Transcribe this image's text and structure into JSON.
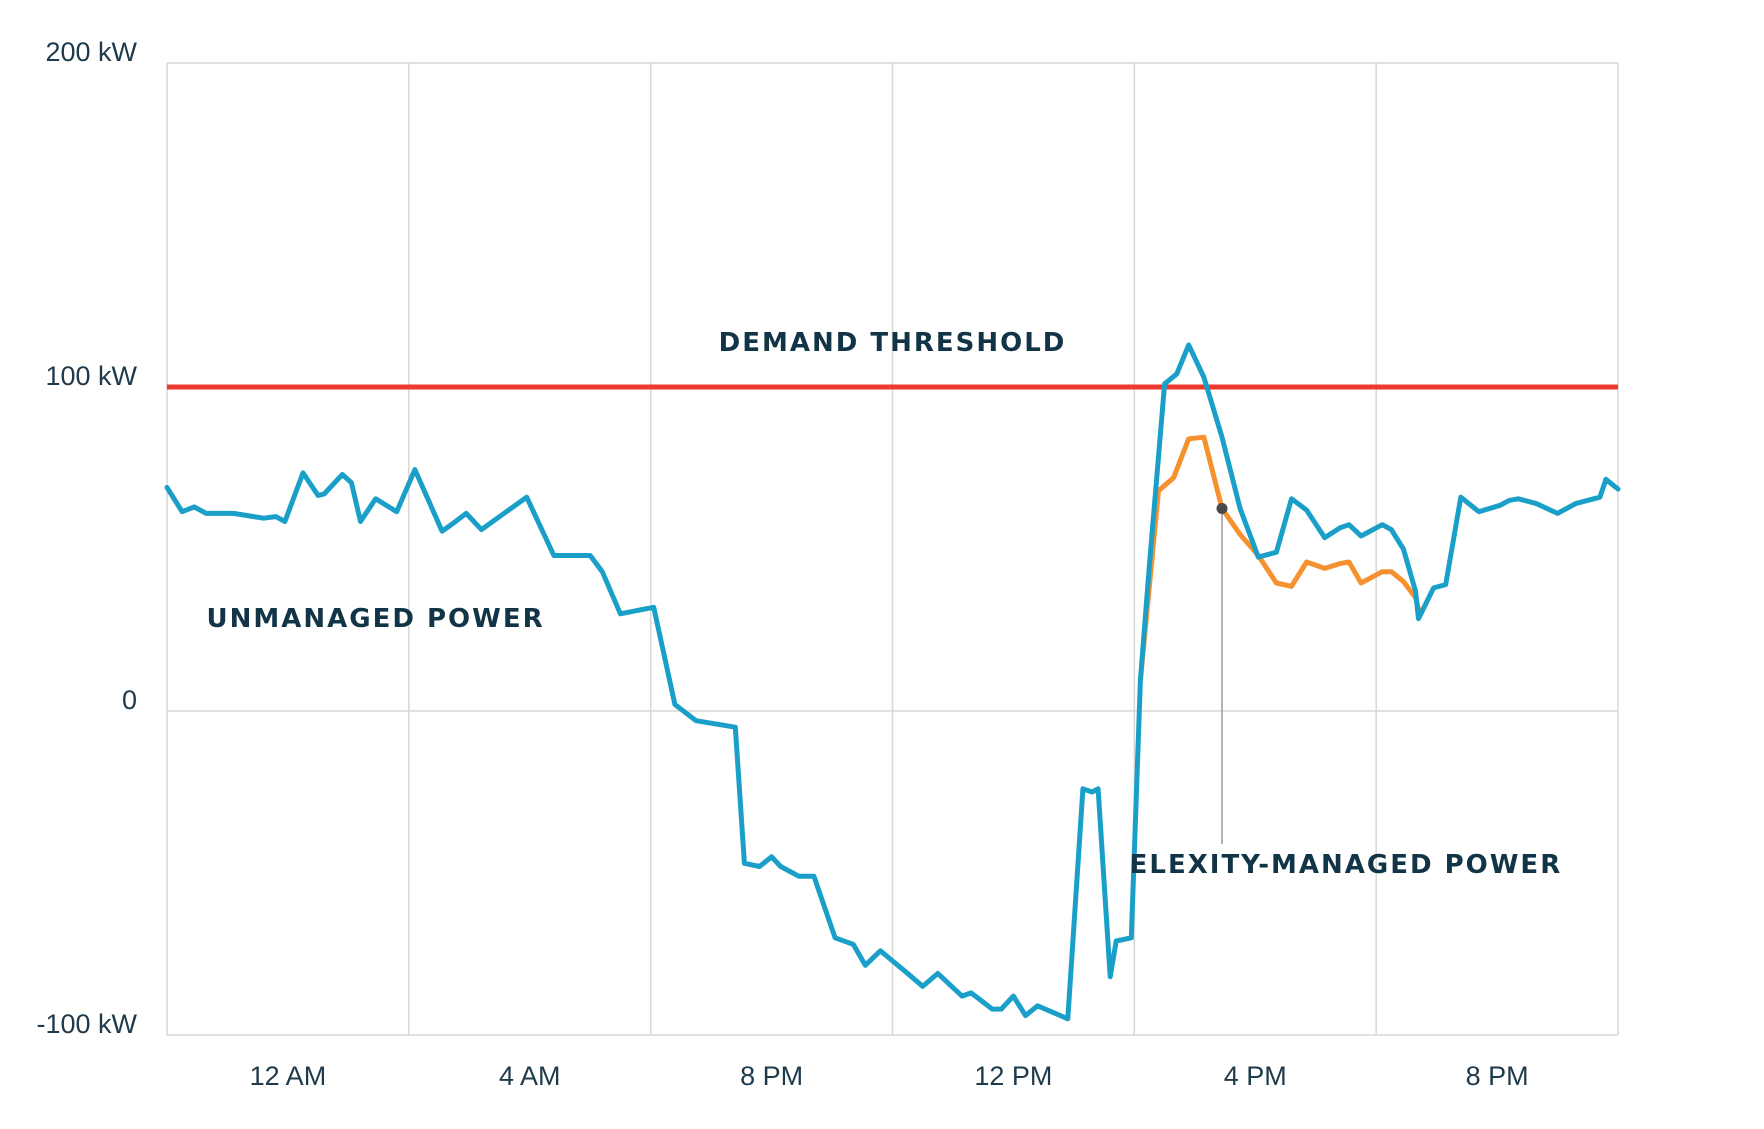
{
  "chart_data": {
    "type": "line",
    "title": "",
    "xlabel": "",
    "ylabel": "",
    "ylim": [
      -100,
      200
    ],
    "xlim": [
      0,
      48
    ],
    "y_ticks": [
      {
        "value": 200,
        "label": "200 kW"
      },
      {
        "value": 100,
        "label": "100 kW"
      },
      {
        "value": 0,
        "label": "0"
      },
      {
        "value": -100,
        "label": "-100 kW"
      }
    ],
    "x_ticks": [
      {
        "value": 4,
        "label": "12 AM"
      },
      {
        "value": 12,
        "label": "4 AM"
      },
      {
        "value": 20,
        "label": "8 PM"
      },
      {
        "value": 28,
        "label": "12 PM"
      },
      {
        "value": 36,
        "label": "4 PM"
      },
      {
        "value": 44,
        "label": "8 PM"
      }
    ],
    "gridlines_x": [
      8,
      16,
      24,
      32,
      40
    ],
    "grid": true,
    "colors": {
      "unmanaged": "#1aa0c8",
      "managed": "#f5922f",
      "threshold": "#ee3a2c",
      "grid": "#d7d7d7",
      "text": "#123447"
    },
    "threshold": {
      "value": 100,
      "label": "DEMAND THRESHOLD"
    },
    "annotations": [
      {
        "text": "UNMANAGED POWER",
        "x": 6.9,
        "y": 26
      },
      {
        "text": "ELEXITY-MANAGED POWER",
        "x": 39.0,
        "y": -50,
        "pointer": {
          "x": 34.9,
          "y": 62.5,
          "to_y": -41
        }
      }
    ],
    "series": [
      {
        "id": "unmanaged",
        "x": [
          0,
          0.5,
          0.9,
          1.3,
          2.2,
          3.2,
          3.6,
          3.9,
          4.5,
          5.0,
          5.2,
          5.8,
          6.1,
          6.4,
          6.9,
          7.6,
          8.2,
          9.1,
          9.4,
          9.9,
          10.4,
          11.0,
          11.9,
          12.8,
          13.5,
          14.0,
          14.4,
          15.0,
          16.1,
          16.8,
          17.5,
          18.8,
          19.1,
          19.6,
          20.0,
          20.3,
          20.9,
          21.4,
          22.1,
          22.7,
          23.1,
          23.6,
          24.5,
          25.0,
          25.5,
          26.3,
          26.6,
          27.3,
          27.6,
          28.0,
          28.4,
          28.8,
          29.8,
          30.3,
          30.6,
          30.8,
          31.2,
          31.4,
          31.9,
          32.2,
          32.5,
          33.0,
          33.4,
          33.8,
          34.3,
          34.9,
          35.5,
          36.1,
          36.7,
          37.2,
          37.7,
          38.3,
          38.8,
          39.1,
          39.5,
          40.2,
          40.5,
          40.9,
          41.3,
          41.4,
          41.9,
          42.3,
          42.8,
          43.4,
          44.1,
          44.4,
          44.7,
          45.3,
          46.0,
          46.6,
          47.4,
          47.6,
          48.0
        ],
        "y": [
          69,
          61.5,
          63,
          61,
          61,
          59.5,
          60,
          58.5,
          73.5,
          66.5,
          67,
          73,
          70.5,
          58.5,
          65.5,
          61.5,
          74.5,
          55.5,
          57.5,
          61,
          56,
          60,
          66,
          48,
          48,
          48,
          43,
          30,
          32,
          2,
          -3,
          -5,
          -47,
          -48,
          -45,
          -48,
          -51,
          -51,
          -70,
          -72,
          -78.5,
          -74,
          -81,
          -85,
          -81,
          -88,
          -87,
          -92,
          -92,
          -88,
          -94,
          -91,
          -95,
          -24,
          -25,
          -24,
          -82,
          -71,
          -70,
          9.5,
          45,
          101,
          104,
          113,
          103,
          84.5,
          62.5,
          47.5,
          49,
          65.5,
          62,
          53.5,
          56.5,
          57.5,
          54,
          57.5,
          56,
          50,
          37,
          28.5,
          38,
          39,
          66,
          61.5,
          63.5,
          65,
          65.5,
          64,
          61,
          64,
          66,
          71.5,
          68.5
        ]
      },
      {
        "id": "managed",
        "x": [
          32.2,
          32.8,
          33.3,
          33.8,
          34.3,
          34.9,
          35.5,
          36.1,
          36.7,
          37.2,
          37.7,
          38.3,
          38.8,
          39.1,
          39.5,
          40.2,
          40.5,
          40.9,
          41.3,
          41.4
        ],
        "y": [
          9.5,
          68,
          72,
          84,
          84.5,
          62.5,
          54.5,
          48,
          39.5,
          38.5,
          46,
          44,
          45.5,
          46,
          39.5,
          43,
          43,
          40,
          35,
          31.5
        ]
      }
    ]
  }
}
